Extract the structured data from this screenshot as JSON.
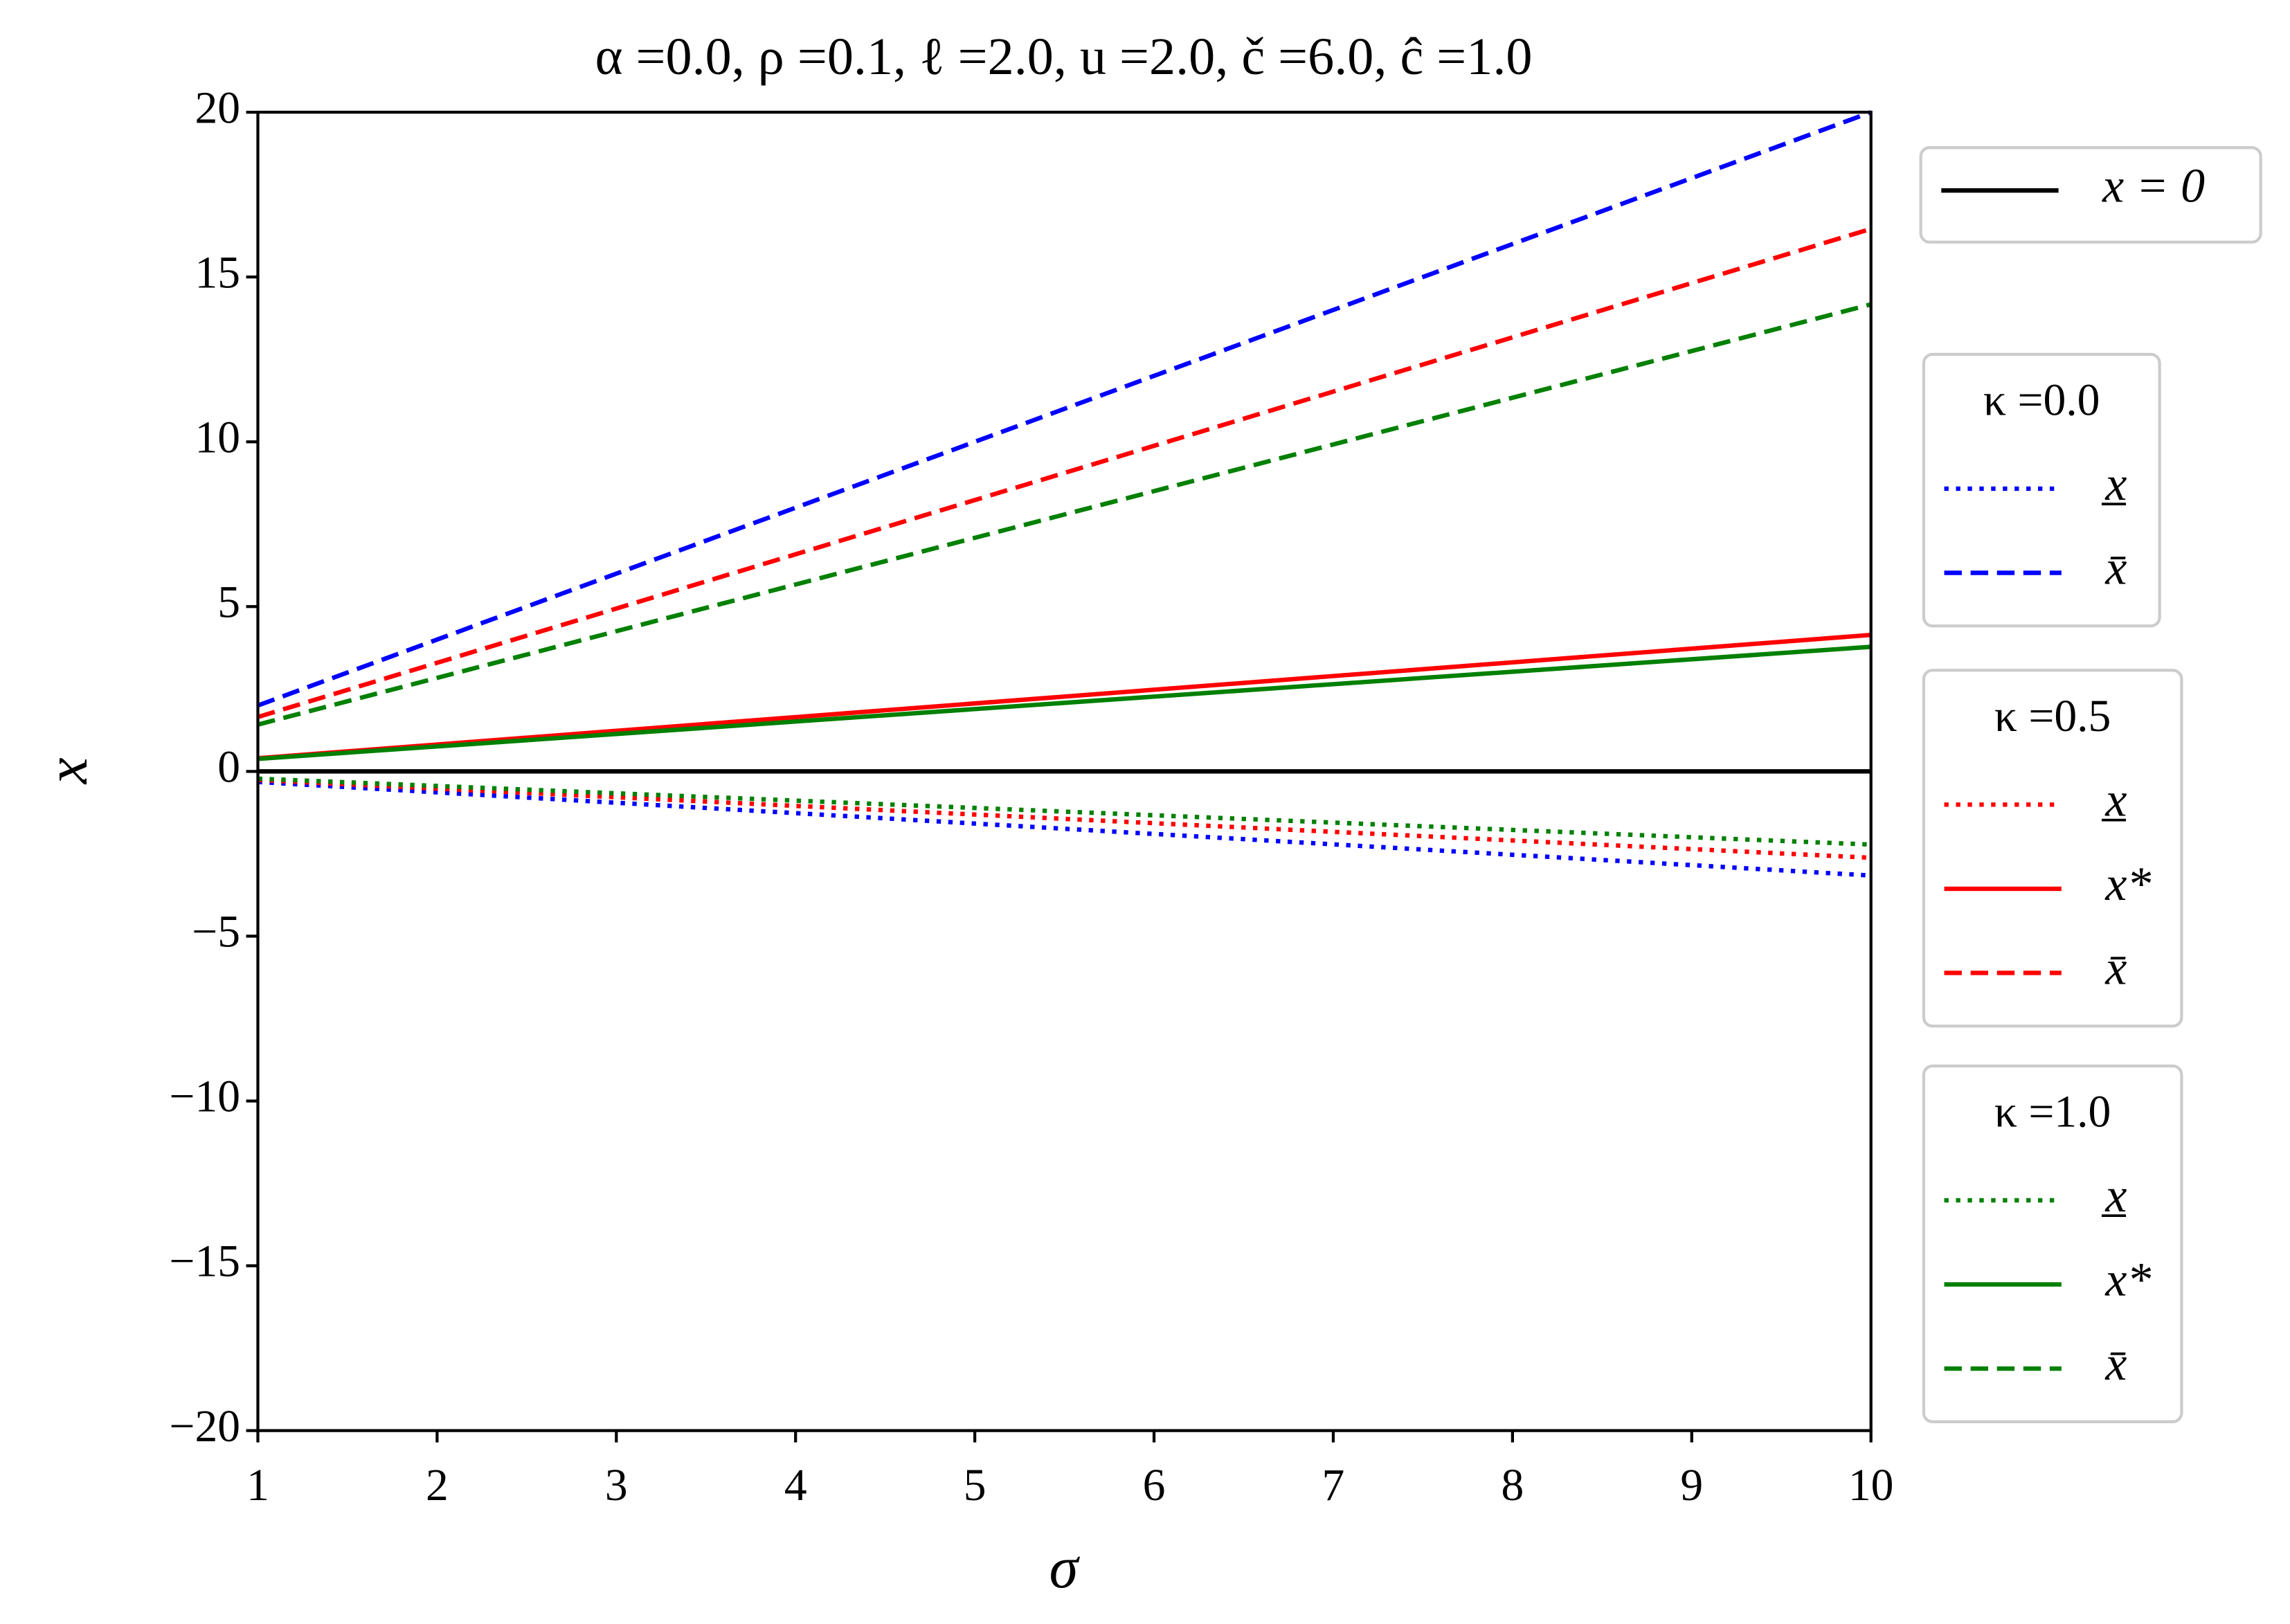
{
  "chart_data": {
    "type": "line",
    "title": "α =0.0, ρ =0.1, ℓ =2.0, u =2.0, č =6.0, ĉ =1.0",
    "x_label": "σ",
    "y_label": "x",
    "x": [
      1,
      10
    ],
    "xlim": [
      1,
      10
    ],
    "xticks": [
      1,
      2,
      3,
      4,
      5,
      6,
      7,
      8,
      9,
      10
    ],
    "ylim": [
      -20,
      20
    ],
    "yticks": [
      {
        "value": -20,
        "label": "−20"
      },
      {
        "value": -15,
        "label": "−15"
      },
      {
        "value": -10,
        "label": "−10"
      },
      {
        "value": -5,
        "label": "−5"
      },
      0,
      5,
      10,
      15,
      20
    ],
    "legend_groups": [
      {
        "series": [
          {
            "name": "x = 0",
            "color": "#000000",
            "style": "solid",
            "values": [
              0,
              0
            ]
          }
        ]
      },
      {
        "title": "κ =0.0",
        "series": [
          {
            "name": "x̲",
            "color": "#0000ff",
            "style": "dotted",
            "values": [
              -0.32,
              -3.16
            ]
          },
          {
            "name": "x̄",
            "color": "#0000ff",
            "style": "dashed",
            "values": [
              2,
              20
            ]
          }
        ]
      },
      {
        "title": "κ =0.5",
        "series": [
          {
            "name": "x̲",
            "color": "#ff0000",
            "style": "dotted",
            "values": [
              -0.26,
              -2.62
            ]
          },
          {
            "name": "x*",
            "color": "#ff0000",
            "style": "solid",
            "values": [
              0.4,
              4.14
            ]
          },
          {
            "name": "x̄",
            "color": "#ff0000",
            "style": "dashed",
            "values": [
              1.65,
              16.46
            ]
          }
        ]
      },
      {
        "title": "κ =1.0",
        "series": [
          {
            "name": "x̲",
            "color": "#008000",
            "style": "dotted",
            "values": [
              -0.22,
              -2.22
            ]
          },
          {
            "name": "x*",
            "color": "#008000",
            "style": "solid",
            "values": [
              0.38,
              3.78
            ]
          },
          {
            "name": "x̄",
            "color": "#008000",
            "style": "dashed",
            "values": [
              1.42,
              14.17
            ]
          }
        ]
      }
    ]
  }
}
